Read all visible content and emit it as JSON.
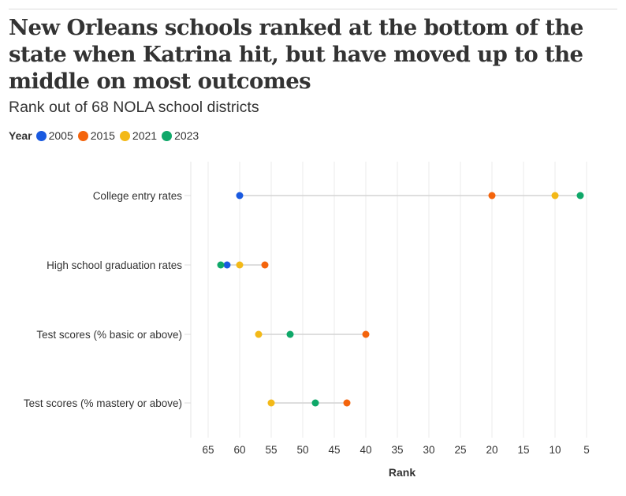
{
  "header": {
    "title": "New Orleans schools ranked at the bottom of the state when Katrina hit, but have moved up to the middle on most outcomes",
    "subtitle": "Rank out of 68 NOLA school districts"
  },
  "legend": {
    "title": "Year",
    "items": [
      {
        "label": "2005",
        "color": "#1a5ae0"
      },
      {
        "label": "2015",
        "color": "#f4640c"
      },
      {
        "label": "2021",
        "color": "#f3b918"
      },
      {
        "label": "2023",
        "color": "#0fa869"
      }
    ]
  },
  "chart_data": {
    "type": "scatter",
    "subtype": "dot-plot",
    "title": "New Orleans schools ranked at the bottom of the state when Katrina hit, but have moved up to the middle on most outcomes",
    "subtitle": "Rank out of 68 NOLA school districts",
    "xlabel": "Rank",
    "ylabel": "",
    "x_reversed": true,
    "xlim": [
      68,
      3
    ],
    "x_ticks": [
      65,
      60,
      55,
      50,
      45,
      40,
      35,
      30,
      25,
      20,
      15,
      10,
      5
    ],
    "grid": true,
    "legend_position": "top-left",
    "categories": [
      "College entry rates",
      "High school graduation rates",
      "Test scores (% basic or above)",
      "Test scores (% mastery or above)"
    ],
    "series": [
      {
        "name": "2005",
        "color": "#1a5ae0",
        "values": [
          60,
          62,
          null,
          null
        ]
      },
      {
        "name": "2015",
        "color": "#f4640c",
        "values": [
          20,
          56,
          40,
          43
        ]
      },
      {
        "name": "2021",
        "color": "#f3b918",
        "values": [
          10,
          60,
          57,
          55
        ]
      },
      {
        "name": "2023",
        "color": "#0fa869",
        "values": [
          6,
          63,
          52,
          48
        ]
      }
    ]
  }
}
